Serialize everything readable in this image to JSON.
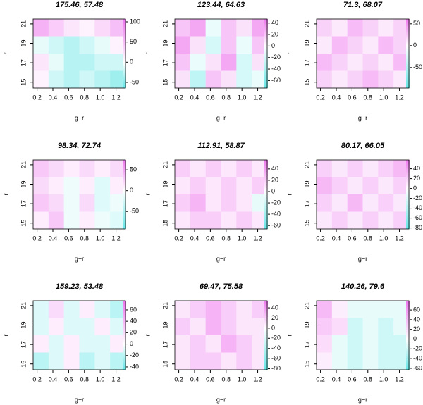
{
  "chart_data": [
    {
      "type": "heatmap",
      "title": "175.46, 57.48",
      "xlabel": "g−r",
      "ylabel": "r",
      "xlim": [
        0.15,
        1.32
      ],
      "xticks": [
        0.2,
        0.4,
        0.6,
        0.8,
        {
          "value": 1,
          "label": "1.0"
        },
        1.2
      ],
      "ylim": [
        14.4,
        21.5
      ],
      "yticks": [
        15,
        17,
        19,
        21
      ],
      "zlim": [
        -64,
        107
      ],
      "zticks": [
        -50,
        0,
        50,
        100
      ],
      "colormap": [
        "#66e6e6",
        "#ffffff",
        "#ee77ee"
      ],
      "cells": [
        [
          60,
          40,
          20,
          10,
          30,
          50
        ],
        [
          -10,
          -20,
          -30,
          -20,
          -10,
          10
        ],
        [
          20,
          -10,
          -30,
          -30,
          -20,
          -20
        ],
        [
          10,
          -20,
          -30,
          -20,
          -30,
          -40
        ]
      ]
    },
    {
      "type": "heatmap",
      "title": "123.44, 64.63",
      "xlabel": "g−r",
      "ylabel": "r",
      "xlim": [
        0.15,
        1.32
      ],
      "xticks": [
        0.2,
        0.4,
        0.6,
        0.8,
        {
          "value": 1,
          "label": "1.0"
        },
        1.2
      ],
      "ylim": [
        14.4,
        21.5
      ],
      "yticks": [
        15,
        17,
        19,
        21
      ],
      "zlim": [
        -73,
        47
      ],
      "zticks": [
        40,
        20,
        0,
        -20,
        -40,
        -60
      ],
      "colormap": [
        "#66e6e6",
        "#ffffff",
        "#ee77ee"
      ],
      "cells": [
        [
          20,
          30,
          -10,
          20,
          10,
          30
        ],
        [
          30,
          10,
          -20,
          20,
          -10,
          20
        ],
        [
          20,
          -10,
          10,
          30,
          -20,
          10
        ],
        [
          10,
          -30,
          20,
          10,
          -20,
          -10
        ]
      ]
    },
    {
      "type": "heatmap",
      "title": "71.3, 68.07",
      "xlabel": "g−r",
      "ylabel": "r",
      "xlim": [
        0.15,
        1.32
      ],
      "xticks": [
        0.2,
        0.4,
        0.6,
        0.8,
        {
          "value": 1,
          "label": "1.0"
        },
        1.2
      ],
      "ylim": [
        14.4,
        21.5
      ],
      "yticks": [
        15,
        17,
        19,
        21
      ],
      "zlim": [
        -97,
        61
      ],
      "zticks": [
        50,
        0,
        -50
      ],
      "colormap": [
        "#66e6e6",
        "#ffffff",
        "#ee77ee"
      ],
      "cells": [
        [
          20,
          10,
          30,
          20,
          10,
          20
        ],
        [
          10,
          30,
          20,
          10,
          30,
          20
        ],
        [
          30,
          20,
          10,
          20,
          10,
          30
        ],
        [
          20,
          10,
          20,
          30,
          20,
          10
        ]
      ]
    },
    {
      "type": "heatmap",
      "title": "98.34, 72.74",
      "xlabel": "g−r",
      "ylabel": "r",
      "xlim": [
        0.15,
        1.32
      ],
      "xticks": [
        0.2,
        0.4,
        0.6,
        0.8,
        {
          "value": 1,
          "label": "1.0"
        },
        1.2
      ],
      "ylim": [
        14.4,
        21.5
      ],
      "yticks": [
        15,
        17,
        19,
        21
      ],
      "zlim": [
        -92,
        74
      ],
      "zticks": [
        50,
        0,
        -50
      ],
      "colormap": [
        "#66e6e6",
        "#ffffff",
        "#ee77ee"
      ],
      "cells": [
        [
          30,
          20,
          10,
          20,
          10,
          20
        ],
        [
          20,
          10,
          -10,
          10,
          -20,
          10
        ],
        [
          30,
          20,
          -10,
          20,
          -20,
          -10
        ],
        [
          10,
          30,
          -10,
          10,
          -10,
          -20
        ]
      ]
    },
    {
      "type": "heatmap",
      "title": "112.91, 58.87",
      "xlabel": "g−r",
      "ylabel": "r",
      "xlim": [
        0.15,
        1.32
      ],
      "xticks": [
        0.2,
        0.4,
        0.6,
        0.8,
        {
          "value": 1,
          "label": "1.0"
        },
        1.2
      ],
      "ylim": [
        14.4,
        21.5
      ],
      "yticks": [
        15,
        17,
        19,
        21
      ],
      "zlim": [
        -66,
        56
      ],
      "zticks": [
        40,
        20,
        0,
        -20,
        -40,
        -60
      ],
      "colormap": [
        "#66e6e6",
        "#ffffff",
        "#ee77ee"
      ],
      "cells": [
        [
          20,
          10,
          20,
          10,
          20,
          10
        ],
        [
          10,
          20,
          10,
          20,
          10,
          20
        ],
        [
          20,
          30,
          10,
          20,
          10,
          -10
        ],
        [
          10,
          20,
          20,
          10,
          20,
          10
        ]
      ]
    },
    {
      "type": "heatmap",
      "title": "80.17, 66.05",
      "xlabel": "g−r",
      "ylabel": "r",
      "xlim": [
        0.15,
        1.32
      ],
      "xticks": [
        0.2,
        0.4,
        0.6,
        0.8,
        {
          "value": 1,
          "label": "1.0"
        },
        1.2
      ],
      "ylim": [
        14.4,
        21.5
      ],
      "yticks": [
        15,
        17,
        19,
        21
      ],
      "zlim": [
        -82,
        58
      ],
      "zticks": [
        40,
        20,
        0,
        -20,
        -40,
        -60,
        -80
      ],
      "colormap": [
        "#66e6e6",
        "#ffffff",
        "#ee77ee"
      ],
      "cells": [
        [
          20,
          10,
          20,
          10,
          20,
          30
        ],
        [
          30,
          20,
          10,
          20,
          10,
          20
        ],
        [
          20,
          10,
          30,
          10,
          20,
          10
        ],
        [
          10,
          20,
          10,
          20,
          10,
          20
        ]
      ]
    },
    {
      "type": "heatmap",
      "title": "159.23, 53.48",
      "xlabel": "g−r",
      "ylabel": "r",
      "xlim": [
        0.15,
        1.32
      ],
      "xticks": [
        0.2,
        0.4,
        0.6,
        0.8,
        {
          "value": 1,
          "label": "1.0"
        },
        1.2
      ],
      "ylim": [
        14.4,
        21.5
      ],
      "yticks": [
        15,
        17,
        19,
        21
      ],
      "zlim": [
        -45,
        76
      ],
      "zticks": [
        60,
        40,
        20,
        0,
        -20,
        -40
      ],
      "colormap": [
        "#66e6e6",
        "#ffffff",
        "#ee77ee"
      ],
      "cells": [
        [
          -10,
          20,
          -10,
          10,
          -10,
          -20
        ],
        [
          -10,
          10,
          -10,
          -10,
          10,
          -10
        ],
        [
          10,
          -10,
          10,
          -10,
          -10,
          10
        ],
        [
          -20,
          -10,
          10,
          -20,
          -10,
          -20
        ]
      ]
    },
    {
      "type": "heatmap",
      "title": "69.47, 75.58",
      "xlabel": "g−r",
      "ylabel": "r",
      "xlim": [
        0.15,
        1.32
      ],
      "xticks": [
        0.2,
        0.4,
        0.6,
        0.8,
        {
          "value": 1,
          "label": "1.0"
        },
        1.2
      ],
      "ylim": [
        14.4,
        21.5
      ],
      "yticks": [
        15,
        17,
        19,
        21
      ],
      "zlim": [
        -82,
        54
      ],
      "zticks": [
        40,
        20,
        0,
        -20,
        -40,
        -60,
        -80
      ],
      "colormap": [
        "#66e6e6",
        "#ffffff",
        "#ee77ee"
      ],
      "cells": [
        [
          10,
          20,
          30,
          20,
          10,
          20
        ],
        [
          20,
          10,
          30,
          20,
          10,
          10
        ],
        [
          10,
          20,
          10,
          30,
          20,
          10
        ],
        [
          10,
          20,
          20,
          10,
          20,
          10
        ]
      ]
    },
    {
      "type": "heatmap",
      "title": "140.26, 79.6",
      "xlabel": "g−r",
      "ylabel": "r",
      "xlim": [
        0.15,
        1.32
      ],
      "xticks": [
        0.2,
        0.4,
        0.6,
        0.8,
        {
          "value": 1,
          "label": "1.0"
        },
        1.2
      ],
      "ylim": [
        14.4,
        21.5
      ],
      "yticks": [
        15,
        17,
        19,
        21
      ],
      "zlim": [
        -63,
        79
      ],
      "zticks": [
        60,
        40,
        20,
        0,
        -20,
        -40,
        -60
      ],
      "colormap": [
        "#66e6e6",
        "#ffffff",
        "#ee77ee"
      ],
      "cells": [
        [
          40,
          10,
          -10,
          -10,
          -10,
          -10
        ],
        [
          30,
          20,
          -20,
          -10,
          -20,
          -10
        ],
        [
          20,
          -10,
          -20,
          -10,
          -20,
          -20
        ],
        [
          10,
          -10,
          -20,
          -10,
          -20,
          -20
        ]
      ]
    }
  ]
}
